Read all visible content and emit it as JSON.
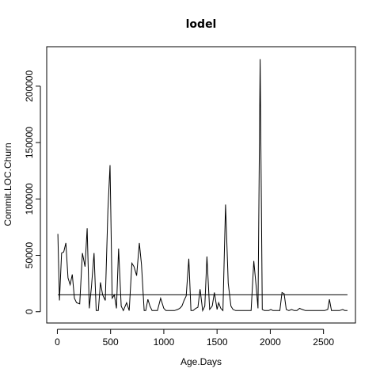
{
  "chart_data": {
    "type": "line",
    "title": "lodel",
    "xlabel": "Age.Days",
    "ylabel": "Commit.LOC.Churn",
    "xlim": [
      -100,
      2800
    ],
    "ylim": [
      -10000,
      235000
    ],
    "x_ticks": [
      0,
      500,
      1000,
      1500,
      2000,
      2500
    ],
    "y_ticks": [
      0,
      50000,
      100000,
      150000,
      200000
    ],
    "x_tick_labels": [
      "0",
      "500",
      "1000",
      "1500",
      "2000",
      "2500"
    ],
    "y_tick_labels": [
      "0",
      "50000",
      "100000",
      "150000",
      "200000"
    ],
    "grid": false,
    "legend": "none",
    "color": "#000000",
    "series": [
      {
        "x": [
          5,
          20,
          40,
          60,
          80,
          100,
          120,
          140,
          160,
          180,
          210,
          235,
          260,
          280,
          300,
          320,
          345,
          365,
          385,
          405,
          425,
          450,
          475,
          495,
          515,
          535,
          555,
          575,
          600,
          620,
          650,
          675,
          700,
          720,
          745,
          770,
          790,
          815,
          830,
          850,
          870,
          890,
          910,
          940,
          970,
          1000,
          1020,
          1050,
          1070,
          1100,
          1130,
          1150,
          1170,
          1190,
          1210,
          1235,
          1255,
          1275,
          1300,
          1320,
          1340,
          1365,
          1385,
          1405,
          1430,
          1455,
          1475,
          1500,
          1515,
          1535,
          1555,
          1580,
          1605,
          1630,
          1650,
          1675,
          1700,
          1720,
          1745,
          1770,
          1795,
          1820,
          1845,
          1870,
          1885,
          1905,
          1925,
          1945,
          1965,
          1985,
          2005,
          2025,
          2050,
          2070,
          2090,
          2110,
          2130,
          2150,
          2175,
          2200,
          2225,
          2250,
          2275,
          2300,
          2330,
          2360,
          2390,
          2420,
          2450,
          2480,
          2510,
          2540,
          2555,
          2575,
          2600,
          2625,
          2650,
          2680,
          2700,
          2725
        ],
        "y": [
          69000,
          10000,
          52000,
          53000,
          61000,
          30000,
          24000,
          33000,
          12000,
          8000,
          7000,
          52000,
          40000,
          74000,
          3000,
          22000,
          52000,
          1000,
          1000,
          26000,
          15000,
          10000,
          90000,
          130000,
          12000,
          15000,
          3000,
          56000,
          5000,
          1000,
          8000,
          1000,
          43000,
          40000,
          32000,
          61000,
          42000,
          1000,
          1000,
          11000,
          5000,
          1000,
          1000,
          1000,
          12000,
          3000,
          1000,
          1000,
          1000,
          1000,
          2000,
          3000,
          5000,
          10000,
          14000,
          47000,
          1000,
          1000,
          3000,
          4000,
          20000,
          1000,
          5000,
          49000,
          2000,
          5000,
          17000,
          2000,
          8000,
          3000,
          1000,
          95000,
          25000,
          5000,
          2000,
          1000,
          1000,
          1000,
          1000,
          1000,
          1000,
          1000,
          45000,
          20000,
          3000,
          224000,
          2000,
          1000,
          1000,
          1000,
          2000,
          1000,
          1000,
          1000,
          1000,
          17000,
          16000,
          2000,
          1000,
          2000,
          1000,
          1000,
          3000,
          2000,
          1000,
          1000,
          1000,
          1000,
          1000,
          1000,
          1000,
          2000,
          11000,
          1000,
          1000,
          1000,
          1000,
          2000,
          1000,
          1000
        ]
      }
    ],
    "reference_line": {
      "y": 15000,
      "x_from": 5,
      "x_to": 2725
    }
  }
}
